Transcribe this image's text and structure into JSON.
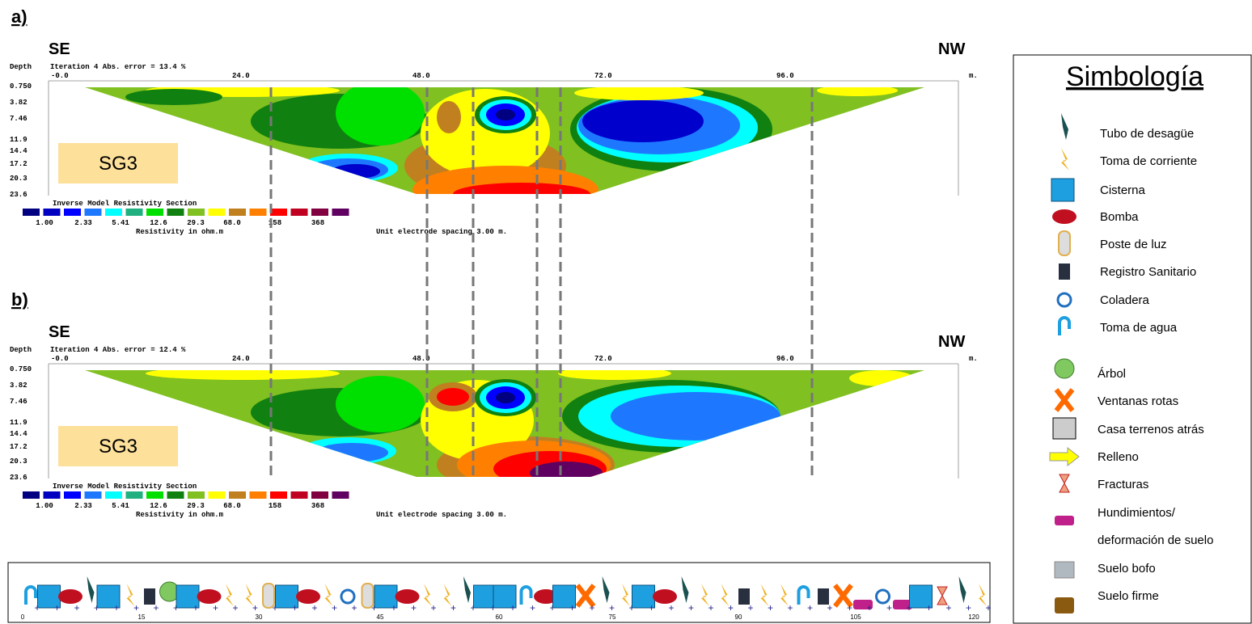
{
  "panels": [
    {
      "label": "a)",
      "left": "SE",
      "right": "NW",
      "depth_label": "Depth",
      "iteration": "Iteration 4 Abs. error = 13.4 %",
      "x_ticks": [
        "-0.0",
        "24.0",
        "48.0",
        "72.0",
        "96.0"
      ],
      "x_unit": "m.",
      "depth_ticks": [
        "0.750",
        "3.82",
        "7.46",
        "11.9",
        "14.4",
        "17.2",
        "20.3",
        "23.6"
      ],
      "section_title": "Inverse Model Resistivity Section",
      "scale_labels": [
        "1.00",
        "2.33",
        "5.41",
        "12.6",
        "29.3",
        "68.0",
        "158",
        "368"
      ],
      "scale_unit": "Resistivity in ohm.m",
      "spacing": "Unit electrode spacing 3.00 m.",
      "tag": "SG3"
    },
    {
      "label": "b)",
      "left": "SE",
      "right": "NW",
      "depth_label": "Depth",
      "iteration": "Iteration 4 Abs. error = 12.4 %",
      "x_ticks": [
        "-0.0",
        "24.0",
        "48.0",
        "72.0",
        "96.0"
      ],
      "x_unit": "m.",
      "depth_ticks": [
        "0.750",
        "3.82",
        "7.46",
        "11.9",
        "14.4",
        "17.2",
        "20.3",
        "23.6"
      ],
      "section_title": "Inverse Model Resistivity Section",
      "scale_labels": [
        "1.00",
        "2.33",
        "5.41",
        "12.6",
        "29.3",
        "68.0",
        "158",
        "368"
      ],
      "scale_unit": "Resistivity in ohm.m",
      "spacing": "Unit electrode spacing 3.00 m.",
      "tag": "SG3"
    }
  ],
  "legend": {
    "title": "Simbología",
    "items": [
      "Tubo de desagüe",
      "Toma de corriente",
      "Cisterna",
      "Bomba",
      "Poste de luz",
      "Registro Sanitario",
      "Coladera",
      "Toma de agua",
      "Árbol",
      "Ventanas rotas",
      "Casa terrenos atrás",
      "Relleno",
      "Fracturas",
      "Hundimientos/",
      "deformación de suelo",
      "Suelo bofo",
      "Suelo firme"
    ]
  },
  "strip": {
    "ticks": [
      "0",
      "15",
      "30",
      "45",
      "60",
      "75",
      "90",
      "105",
      "120"
    ]
  }
}
